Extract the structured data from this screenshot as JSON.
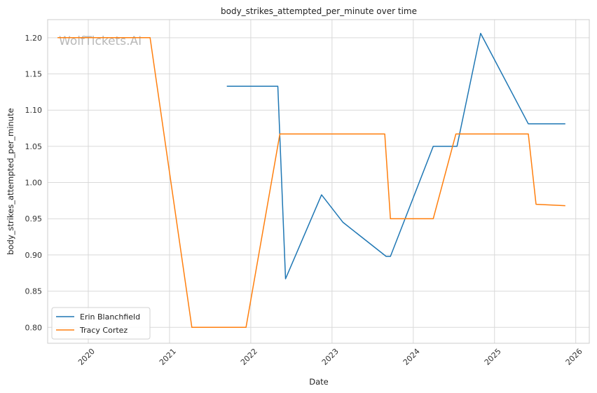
{
  "chart_data": {
    "type": "line",
    "title": "body_strikes_attempted_per_minute over time",
    "xlabel": "Date",
    "ylabel": "body_strikes_attempted_per_minute",
    "watermark": "WolfTickets.AI",
    "x_ticks": [
      "2020",
      "2021",
      "2022",
      "2023",
      "2024",
      "2025",
      "2026"
    ],
    "y_ticks": [
      "0.80",
      "0.85",
      "0.90",
      "0.95",
      "1.00",
      "1.05",
      "1.10",
      "1.15",
      "1.20"
    ],
    "xlim": [
      "2019-07-01",
      "2026-03-01"
    ],
    "ylim": [
      0.778,
      1.225
    ],
    "grid": true,
    "legend_position": "lower-left",
    "series": [
      {
        "name": "Erin Blanchfield",
        "color": "#1f77b4",
        "points": [
          [
            "2021-09-15",
            1.133
          ],
          [
            "2022-05-01",
            1.133
          ],
          [
            "2022-06-05",
            0.867
          ],
          [
            "2022-11-15",
            0.983
          ],
          [
            "2023-02-20",
            0.945
          ],
          [
            "2023-09-01",
            0.898
          ],
          [
            "2023-09-20",
            0.898
          ],
          [
            "2024-03-30",
            1.05
          ],
          [
            "2024-07-15",
            1.05
          ],
          [
            "2024-10-30",
            1.206
          ],
          [
            "2025-06-01",
            1.081
          ],
          [
            "2025-11-15",
            1.081
          ]
        ]
      },
      {
        "name": "Tracy Cortez",
        "color": "#ff7f0e",
        "points": [
          [
            "2019-08-15",
            1.2
          ],
          [
            "2020-10-05",
            1.2
          ],
          [
            "2021-04-10",
            0.8
          ],
          [
            "2021-12-10",
            0.8
          ],
          [
            "2022-05-10",
            1.067
          ],
          [
            "2023-08-25",
            1.067
          ],
          [
            "2023-09-20",
            0.95
          ],
          [
            "2024-03-30",
            0.95
          ],
          [
            "2024-07-10",
            1.067
          ],
          [
            "2025-06-01",
            1.067
          ],
          [
            "2025-07-05",
            0.97
          ],
          [
            "2025-11-15",
            0.968
          ]
        ]
      }
    ]
  }
}
